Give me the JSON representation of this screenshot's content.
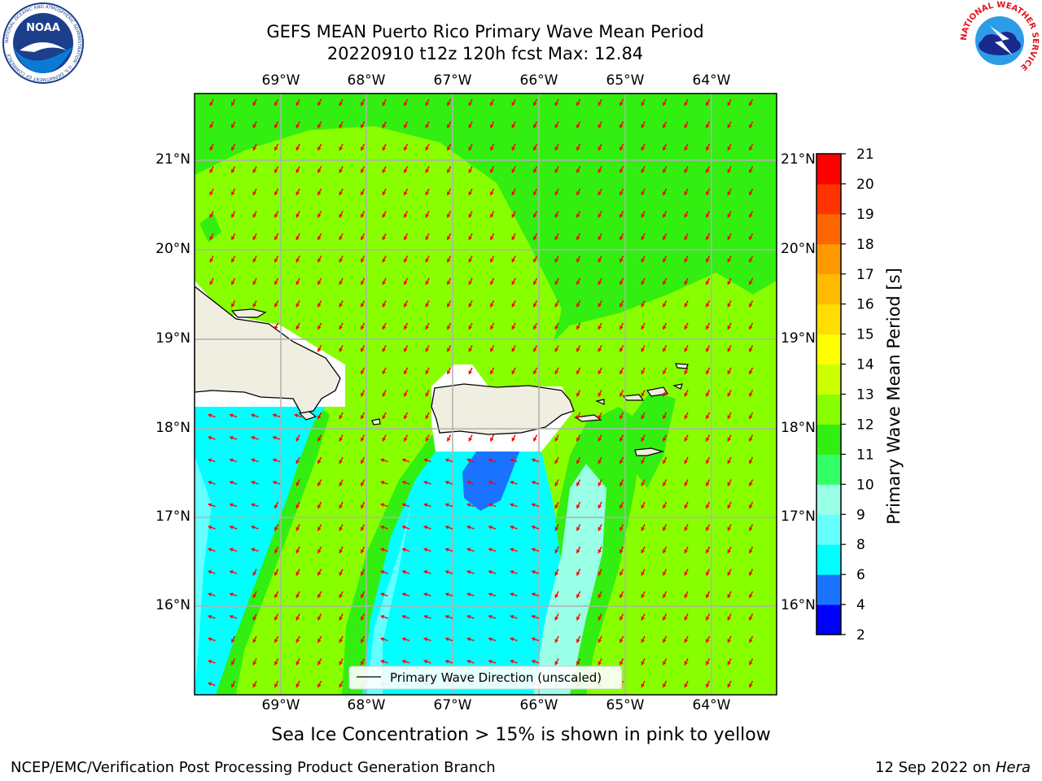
{
  "header": {
    "title_line1": "GEFS MEAN Puerto Rico Primary Wave Mean Period",
    "title_line2": "20220910 t12z 120h fcst   Max: 12.84"
  },
  "logos": {
    "noaa_text": "NOAA",
    "noaa_ring": "NATIONAL OCEANIC AND ATMOSPHERIC ADMINISTRATION · U.S. DEPARTMENT OF COMMERCE",
    "nws_ring": "NATIONAL WEATHER SERVICE"
  },
  "map": {
    "lon_labels": [
      "69°W",
      "68°W",
      "67°W",
      "66°W",
      "65°W",
      "64°W"
    ],
    "lat_labels": [
      "21°N",
      "20°N",
      "19°N",
      "18°N",
      "17°N",
      "16°N"
    ],
    "legend_label": "Primary Wave Direction (unscaled)",
    "colors": {
      "land": "#efeee0",
      "coastline": "#000000",
      "arrow": "#ff0000",
      "gridline": "#b0b0b0"
    }
  },
  "colorbar": {
    "label": "Primary Wave Mean Period [s]",
    "ticks": [
      "2",
      "4",
      "6",
      "8",
      "9",
      "10",
      "11",
      "12",
      "13",
      "14",
      "15",
      "16",
      "17",
      "18",
      "19",
      "20",
      "21"
    ],
    "colors": [
      "#0000ff",
      "#1a73ff",
      "#00ffff",
      "#66ffff",
      "#99ffe6",
      "#33ff66",
      "#33ee11",
      "#88ff00",
      "#ccff00",
      "#ffff00",
      "#ffdd00",
      "#ffbb00",
      "#ff9900",
      "#ff6600",
      "#ff3300",
      "#ff0000"
    ]
  },
  "caption": "Sea Ice Concentration > 15% is shown in pink to yellow",
  "footer": {
    "left": "NCEP/EMC/Verification Post Processing Product Generation Branch",
    "right_prefix": "12 Sep 2022 on ",
    "right_host": "Hera"
  }
}
